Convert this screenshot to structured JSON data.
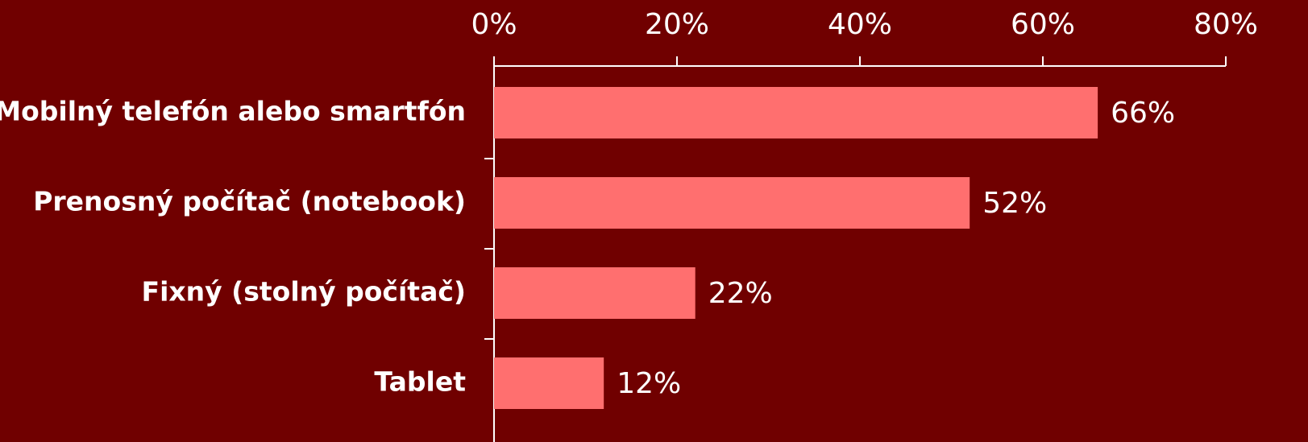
{
  "chart_data": {
    "type": "bar",
    "orientation": "horizontal",
    "categories": [
      "Mobilný telefón alebo smartfón",
      "Prenosný počítač (notebook)",
      "Fixný (stolný počítač)",
      "Tablet"
    ],
    "values": [
      66,
      52,
      22,
      12
    ],
    "value_labels": [
      "66%",
      "52%",
      "22%",
      "12%"
    ],
    "color": "#ff6f6f",
    "xlim": [
      0,
      80
    ],
    "xticks": [
      {
        "value": 0,
        "label": "0%"
      },
      {
        "value": 20,
        "label": "20%"
      },
      {
        "value": 40,
        "label": "40%"
      },
      {
        "value": 60,
        "label": "60%"
      },
      {
        "value": 80,
        "label": "80%"
      }
    ],
    "grid": false
  }
}
